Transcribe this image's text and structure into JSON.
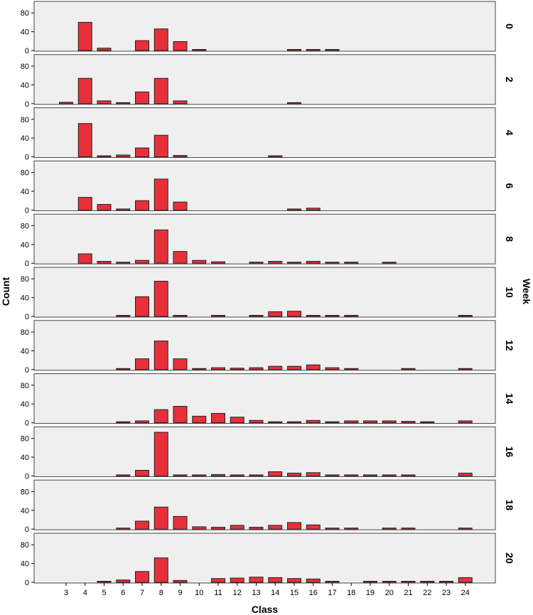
{
  "chart_data": {
    "type": "bar",
    "layout": "faceted-histogram",
    "xlabel": "Class",
    "ylabel": "Count",
    "facet_label": "Week",
    "ylim": [
      0,
      100
    ],
    "yticks": [
      0,
      40,
      80
    ],
    "categories": [
      "3",
      "4",
      "5",
      "6",
      "7",
      "8",
      "9",
      "10",
      "11",
      "12",
      "13",
      "14",
      "15",
      "16",
      "17",
      "18",
      "19",
      "20",
      "21",
      "22",
      "23",
      "24"
    ],
    "bar_color": "#E8303A",
    "panel_background": "#EFEFEF",
    "grid": false,
    "panels": [
      {
        "week": "0",
        "values": [
          0,
          60,
          5,
          0,
          21,
          46,
          19,
          1,
          0,
          0,
          0,
          0,
          1,
          1,
          1,
          0,
          0,
          0,
          0,
          0,
          0,
          0
        ]
      },
      {
        "week": "2",
        "values": [
          3,
          54,
          6,
          2,
          25,
          54,
          6,
          0,
          0,
          0,
          0,
          0,
          2,
          0,
          0,
          0,
          0,
          0,
          0,
          0,
          0,
          0
        ]
      },
      {
        "week": "4",
        "values": [
          0,
          71,
          2,
          4,
          19,
          46,
          3,
          0,
          0,
          0,
          0,
          2,
          0,
          0,
          0,
          0,
          0,
          0,
          0,
          0,
          0,
          0
        ]
      },
      {
        "week": "6",
        "values": [
          0,
          27,
          12,
          2,
          20,
          66,
          17,
          0,
          0,
          0,
          0,
          0,
          2,
          4,
          0,
          0,
          0,
          0,
          0,
          0,
          0,
          0
        ]
      },
      {
        "week": "8",
        "values": [
          0,
          20,
          4,
          2,
          6,
          71,
          25,
          6,
          3,
          0,
          1,
          4,
          2,
          4,
          2,
          1,
          0,
          1,
          0,
          0,
          0,
          0
        ]
      },
      {
        "week": "10",
        "values": [
          0,
          0,
          0,
          1,
          42,
          75,
          1,
          0,
          2,
          0,
          2,
          10,
          11,
          2,
          1,
          2,
          0,
          0,
          0,
          0,
          0,
          2
        ]
      },
      {
        "week": "12",
        "values": [
          0,
          0,
          0,
          2,
          23,
          61,
          23,
          2,
          4,
          3,
          4,
          7,
          7,
          10,
          4,
          1,
          0,
          0,
          1,
          0,
          0,
          2
        ]
      },
      {
        "week": "14",
        "values": [
          0,
          0,
          0,
          1,
          4,
          28,
          35,
          14,
          20,
          12,
          5,
          2,
          2,
          5,
          2,
          4,
          4,
          4,
          3,
          2,
          0,
          4
        ]
      },
      {
        "week": "16",
        "values": [
          0,
          0,
          0,
          1,
          12,
          93,
          2,
          1,
          3,
          1,
          2,
          9,
          6,
          7,
          2,
          1,
          1,
          2,
          1,
          0,
          0,
          6
        ]
      },
      {
        "week": "18",
        "values": [
          0,
          0,
          0,
          1,
          17,
          47,
          27,
          5,
          4,
          8,
          4,
          8,
          14,
          9,
          1,
          2,
          0,
          2,
          2,
          0,
          0,
          2
        ]
      },
      {
        "week": "20",
        "values": [
          0,
          0,
          1,
          5,
          23,
          52,
          4,
          0,
          8,
          9,
          11,
          10,
          8,
          7,
          2,
          0,
          2,
          1,
          1,
          2,
          1,
          10
        ]
      }
    ]
  }
}
